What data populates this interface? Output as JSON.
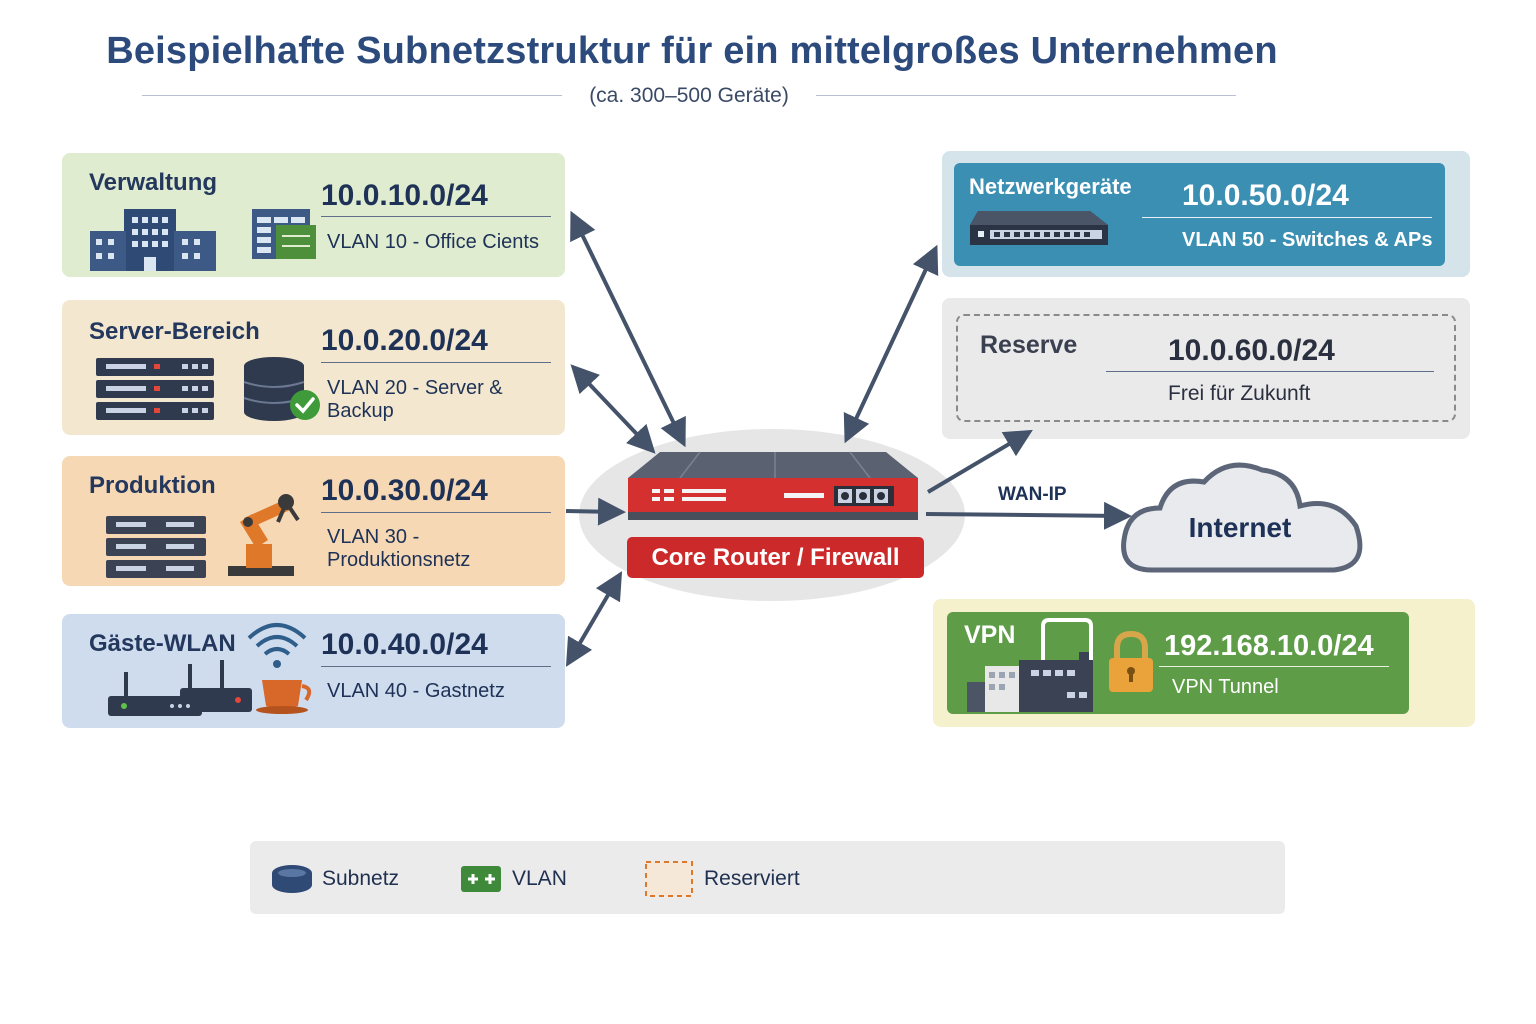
{
  "title": "Beispielhafte Subnetzstruktur für ein mittelgroßes Unternehmen",
  "subtitle": "(ca. 300–500 Geräte)",
  "subnets_left": [
    {
      "name": "Verwaltung",
      "network": "10.0.10.0/24",
      "vlan": "VLAN 10 - Office Cients"
    },
    {
      "name": "Server-Bereich",
      "network": "10.0.20.0/24",
      "vlan": "VLAN 20 - Server & Backup"
    },
    {
      "name": "Produktion",
      "network": "10.0.30.0/24",
      "vlan": "VLAN 30 - Produktionsnetz"
    },
    {
      "name": "Gäste-WLAN",
      "network": "10.0.40.0/24",
      "vlan": "VLAN 40 - Gastnetz"
    }
  ],
  "subnets_right": {
    "netzwerk": {
      "name": "Netzwerkgeräte",
      "network": "10.0.50.0/24",
      "vlan": "VLAN 50 - Switches & APs"
    },
    "reserve": {
      "name": "Reserve",
      "network": "10.0.60.0/24",
      "note": "Frei für Zukunft"
    },
    "vpn": {
      "name": "VPN",
      "network": "192.168.10.0/24",
      "note": "VPN Tunnel"
    }
  },
  "router": {
    "label": "Core Router / Firewall"
  },
  "wan_label": "WAN-IP",
  "internet": "Internet",
  "legend": {
    "subnet": "Subnetz",
    "vlan": "VLAN",
    "reserved": "Reserviert"
  },
  "colors": {
    "router_red": "#cc2a2a",
    "netz_blue": "#3b8fb3",
    "vpn_green": "#5e9c48",
    "arrow": "#44536a"
  },
  "icons": [
    "building-icon",
    "spreadsheet-icon",
    "server-rack-icon",
    "database-icon",
    "check-icon",
    "robot-arm-icon",
    "wifi-icon",
    "router-device-icon",
    "coffee-cup-icon",
    "switch-icon",
    "padlock-icon",
    "factory-icon",
    "cloud-icon"
  ]
}
